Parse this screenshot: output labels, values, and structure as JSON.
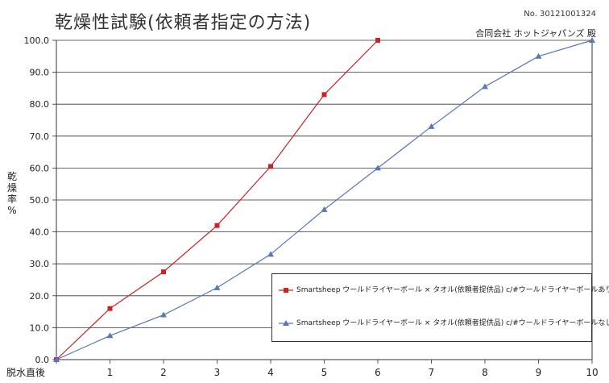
{
  "header": {
    "title": "乾燥性試験(依頼者指定の方法)",
    "doc_number": "No. 30121001324",
    "company": "合同会社 ホットジャパンズ 殿"
  },
  "chart_data": {
    "type": "line",
    "title": "乾燥性試験(依頼者指定の方法)",
    "xlabel": "",
    "ylabel_chars": [
      "乾",
      "燥",
      "率",
      "%"
    ],
    "categories": [
      "脱水直後",
      "1",
      "2",
      "3",
      "4",
      "5",
      "6",
      "7",
      "8",
      "9",
      "10"
    ],
    "ylim": [
      0,
      100
    ],
    "yticks": [
      "0.0",
      "10.0",
      "20.0",
      "30.0",
      "40.0",
      "50.0",
      "60.0",
      "70.0",
      "80.0",
      "90.0",
      "100.0"
    ],
    "grid": "horizontal",
    "legend_position": "bottom-right",
    "series": [
      {
        "name": "Smartsheep ウールドライヤーボール × タオル(依頼者提供品) c/#ウールドライヤーボールあり",
        "color": "#cc2222",
        "marker": "square",
        "x": [
          0,
          1,
          2,
          3,
          4,
          5,
          6
        ],
        "values": [
          0.0,
          16.0,
          27.5,
          42.0,
          60.5,
          83.0,
          100.0
        ]
      },
      {
        "name": "Smartsheep ウールドライヤーボール × タオル(依頼者提供品) c/#ウールドライヤーボールなし",
        "color": "#5577bb",
        "marker": "triangle",
        "x": [
          0,
          1,
          2,
          3,
          4,
          5,
          6,
          7,
          8,
          9,
          10
        ],
        "values": [
          0.0,
          7.5,
          14.0,
          22.5,
          33.0,
          47.0,
          60.0,
          73.0,
          85.5,
          95.0,
          100.0
        ]
      }
    ]
  }
}
